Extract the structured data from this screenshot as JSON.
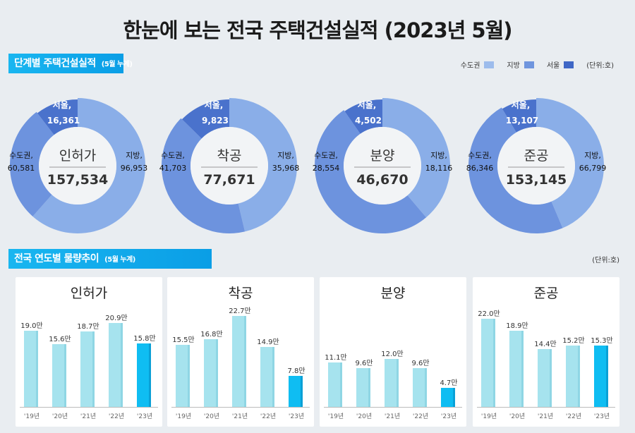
{
  "title": "한눈에 보는 전국 주택건설실적 (2023년 5월)",
  "section1": {
    "label": "단계별 주택건설실적",
    "sub": "(5월 누계)"
  },
  "section2": {
    "label": "전국 연도별 물량추이",
    "sub": "(5월 누계)"
  },
  "legend": {
    "items": [
      {
        "label": "수도권",
        "color": "#9dbcec"
      },
      {
        "label": "지방",
        "color": "#6f95de"
      },
      {
        "label": "서울",
        "color": "#3f67c6"
      }
    ],
    "unit": "(단위:호)"
  },
  "unit2": "(단위:호)",
  "colors": {
    "지방": "#8aaee8",
    "수도권": "#6d93de",
    "서울": "#4a72cc",
    "bar": "#a6e3ee",
    "bar_current": "#0fbdf2"
  },
  "chart_data": [
    {
      "type": "pie",
      "name": "인허가",
      "total": "157,534",
      "slices": [
        {
          "label": "지방,",
          "value": 96953,
          "text": "96,953"
        },
        {
          "label": "수도권,",
          "value": 60581,
          "text": "60,581"
        },
        {
          "label": "서울,",
          "value": 16361,
          "text": "16,361"
        }
      ]
    },
    {
      "type": "pie",
      "name": "착공",
      "total": "77,671",
      "slices": [
        {
          "label": "지방,",
          "value": 35968,
          "text": "35,968"
        },
        {
          "label": "수도권,",
          "value": 41703,
          "text": "41,703"
        },
        {
          "label": "서울,",
          "value": 9823,
          "text": "9,823"
        }
      ]
    },
    {
      "type": "pie",
      "name": "분양",
      "total": "46,670",
      "slices": [
        {
          "label": "지방,",
          "value": 18116,
          "text": "18,116"
        },
        {
          "label": "수도권,",
          "value": 28554,
          "text": "28,554"
        },
        {
          "label": "서울,",
          "value": 4502,
          "text": "4,502"
        }
      ]
    },
    {
      "type": "pie",
      "name": "준공",
      "total": "153,145",
      "slices": [
        {
          "label": "지방,",
          "value": 66799,
          "text": "66,799"
        },
        {
          "label": "수도권,",
          "value": 86346,
          "text": "86,346"
        },
        {
          "label": "서울,",
          "value": 13107,
          "text": "13,107"
        }
      ]
    },
    {
      "type": "bar",
      "title": "인허가",
      "categories": [
        "'19년",
        "'20년",
        "'21년",
        "'22년",
        "'23년"
      ],
      "values": [
        19.0,
        15.6,
        18.7,
        20.9,
        15.8
      ],
      "labels": [
        "19.0만",
        "15.6만",
        "18.7만",
        "20.9만",
        "15.8만"
      ]
    },
    {
      "type": "bar",
      "title": "착공",
      "categories": [
        "'19년",
        "'20년",
        "'21년",
        "'22년",
        "'23년"
      ],
      "values": [
        15.5,
        16.8,
        22.7,
        14.9,
        7.8
      ],
      "labels": [
        "15.5만",
        "16.8만",
        "22.7만",
        "14.9만",
        "7.8만"
      ]
    },
    {
      "type": "bar",
      "title": "분양",
      "categories": [
        "'19년",
        "'20년",
        "'21년",
        "'22년",
        "'23년"
      ],
      "values": [
        11.1,
        9.6,
        12.0,
        9.6,
        4.7
      ],
      "labels": [
        "11.1만",
        "9.6만",
        "12.0만",
        "9.6만",
        "4.7만"
      ]
    },
    {
      "type": "bar",
      "title": "준공",
      "categories": [
        "'19년",
        "'20년",
        "'21년",
        "'22년",
        "'23년"
      ],
      "values": [
        22.0,
        18.9,
        14.4,
        15.2,
        15.3
      ],
      "labels": [
        "22.0만",
        "18.9만",
        "14.4만",
        "15.2만",
        "15.3만"
      ]
    }
  ]
}
